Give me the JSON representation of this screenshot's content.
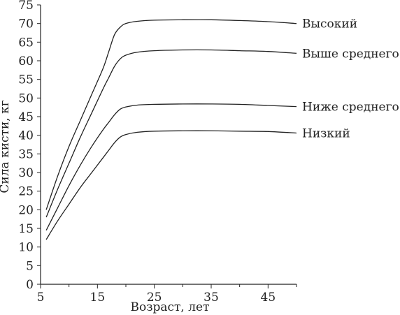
{
  "chart_data": {
    "type": "line",
    "xlabel": "Возраст, лет",
    "ylabel": "Сила кисти, кг",
    "xlim": [
      5,
      50
    ],
    "ylim": [
      0,
      75
    ],
    "xticks": [
      5,
      15,
      25,
      35,
      45
    ],
    "yticks": [
      0,
      5,
      10,
      15,
      20,
      25,
      30,
      35,
      40,
      45,
      50,
      55,
      60,
      65,
      70,
      75
    ],
    "grid": false,
    "legend": "inline labels at right end of lines",
    "series": [
      {
        "name": "Высокий",
        "points": [
          [
            6,
            20
          ],
          [
            8,
            29
          ],
          [
            10,
            37
          ],
          [
            12,
            44
          ],
          [
            14,
            51
          ],
          [
            16,
            58
          ],
          [
            17,
            62.5
          ],
          [
            18,
            67
          ],
          [
            19,
            69
          ],
          [
            20,
            70
          ],
          [
            22,
            70.6
          ],
          [
            25,
            70.9
          ],
          [
            30,
            71
          ],
          [
            35,
            71
          ],
          [
            40,
            70.8
          ],
          [
            45,
            70.5
          ],
          [
            50,
            70
          ]
        ]
      },
      {
        "name": "Выше среднего",
        "points": [
          [
            6,
            18
          ],
          [
            8,
            25.5
          ],
          [
            10,
            32.5
          ],
          [
            12,
            39.5
          ],
          [
            14,
            46
          ],
          [
            16,
            52.5
          ],
          [
            17,
            55.5
          ],
          [
            18,
            58.5
          ],
          [
            19,
            60.5
          ],
          [
            20,
            61.5
          ],
          [
            22,
            62.3
          ],
          [
            25,
            62.7
          ],
          [
            30,
            62.9
          ],
          [
            35,
            62.9
          ],
          [
            40,
            62.7
          ],
          [
            45,
            62.5
          ],
          [
            50,
            62
          ]
        ]
      },
      {
        "name": "Ниже среднего",
        "points": [
          [
            6,
            14.5
          ],
          [
            8,
            20.5
          ],
          [
            10,
            26.5
          ],
          [
            12,
            32
          ],
          [
            14,
            37
          ],
          [
            16,
            41.5
          ],
          [
            17,
            43.5
          ],
          [
            18,
            45.5
          ],
          [
            19,
            47
          ],
          [
            20,
            47.6
          ],
          [
            22,
            48.1
          ],
          [
            25,
            48.3
          ],
          [
            30,
            48.4
          ],
          [
            35,
            48.4
          ],
          [
            40,
            48.3
          ],
          [
            45,
            48
          ],
          [
            50,
            47.7
          ]
        ]
      },
      {
        "name": "Низкий",
        "points": [
          [
            6,
            12
          ],
          [
            8,
            17
          ],
          [
            10,
            21.5
          ],
          [
            12,
            26
          ],
          [
            14,
            30
          ],
          [
            16,
            34
          ],
          [
            17,
            36
          ],
          [
            18,
            38
          ],
          [
            19,
            39.5
          ],
          [
            20,
            40.2
          ],
          [
            22,
            40.8
          ],
          [
            25,
            41.1
          ],
          [
            30,
            41.2
          ],
          [
            35,
            41.2
          ],
          [
            40,
            41.1
          ],
          [
            45,
            41
          ],
          [
            50,
            40.6
          ]
        ]
      }
    ]
  }
}
